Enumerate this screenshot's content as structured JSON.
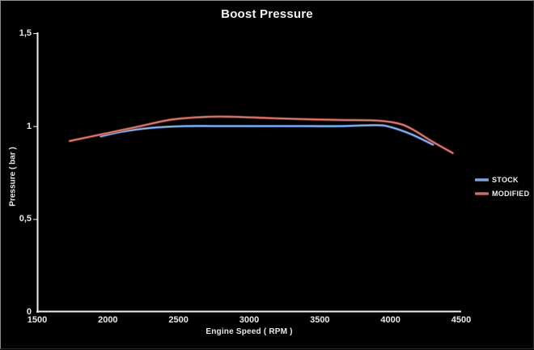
{
  "title": "Boost Pressure",
  "colors": {
    "background": "#000000",
    "axis": "#efefef",
    "text": "#e9e9e9",
    "border_light": "#919191",
    "border_dark": "#2e2e2e"
  },
  "legend": {
    "position": "right",
    "items": [
      {
        "label": "STOCK",
        "color": "#6f96cb",
        "inner": "#9db9e2",
        "outer": "#3c64a4"
      },
      {
        "label": "MODIFIED",
        "color": "#c4564b",
        "inner": "#d8857a",
        "outer": "#8c3730"
      }
    ]
  },
  "chart_data": {
    "type": "line",
    "title": "Boost Pressure",
    "xlabel": "Engine Speed ( RPM )",
    "ylabel": "Pressure ( bar )",
    "xlim": [
      1500,
      4500
    ],
    "ylim": [
      0,
      1.5
    ],
    "grid": false,
    "legend_position": "right",
    "x_ticks": [
      {
        "value": 1500,
        "label": "1500"
      },
      {
        "value": 2000,
        "label": "2000"
      },
      {
        "value": 2500,
        "label": "2500"
      },
      {
        "value": 3000,
        "label": "3000"
      },
      {
        "value": 3500,
        "label": "3500"
      },
      {
        "value": 4000,
        "label": "4000"
      },
      {
        "value": 4500,
        "label": "4500"
      }
    ],
    "y_ticks": [
      {
        "value": 0,
        "label": "0"
      },
      {
        "value": 0.5,
        "label": "0,5"
      },
      {
        "value": 1,
        "label": "1"
      },
      {
        "value": 1.5,
        "label": "1,5"
      }
    ],
    "series": [
      {
        "name": "STOCK",
        "color": "#6f96cb",
        "inner": "#9db9e2",
        "outer": "#3c64a4",
        "x": [
          1950,
          2100,
          2300,
          2550,
          2800,
          3100,
          3400,
          3650,
          3900,
          4000,
          4150,
          4300
        ],
        "y": [
          0.945,
          0.97,
          0.99,
          1.0,
          1.0,
          1.0,
          1.0,
          1.0,
          1.005,
          0.995,
          0.955,
          0.9
        ]
      },
      {
        "name": "MODIFIED",
        "color": "#c4564b",
        "inner": "#d8857a",
        "outer": "#8c3730",
        "x": [
          1730,
          1950,
          2200,
          2450,
          2700,
          2900,
          3150,
          3400,
          3650,
          3900,
          4050,
          4150,
          4300,
          4440
        ],
        "y": [
          0.92,
          0.955,
          0.995,
          1.035,
          1.05,
          1.05,
          1.043,
          1.037,
          1.033,
          1.03,
          1.015,
          0.985,
          0.915,
          0.855
        ]
      }
    ]
  }
}
